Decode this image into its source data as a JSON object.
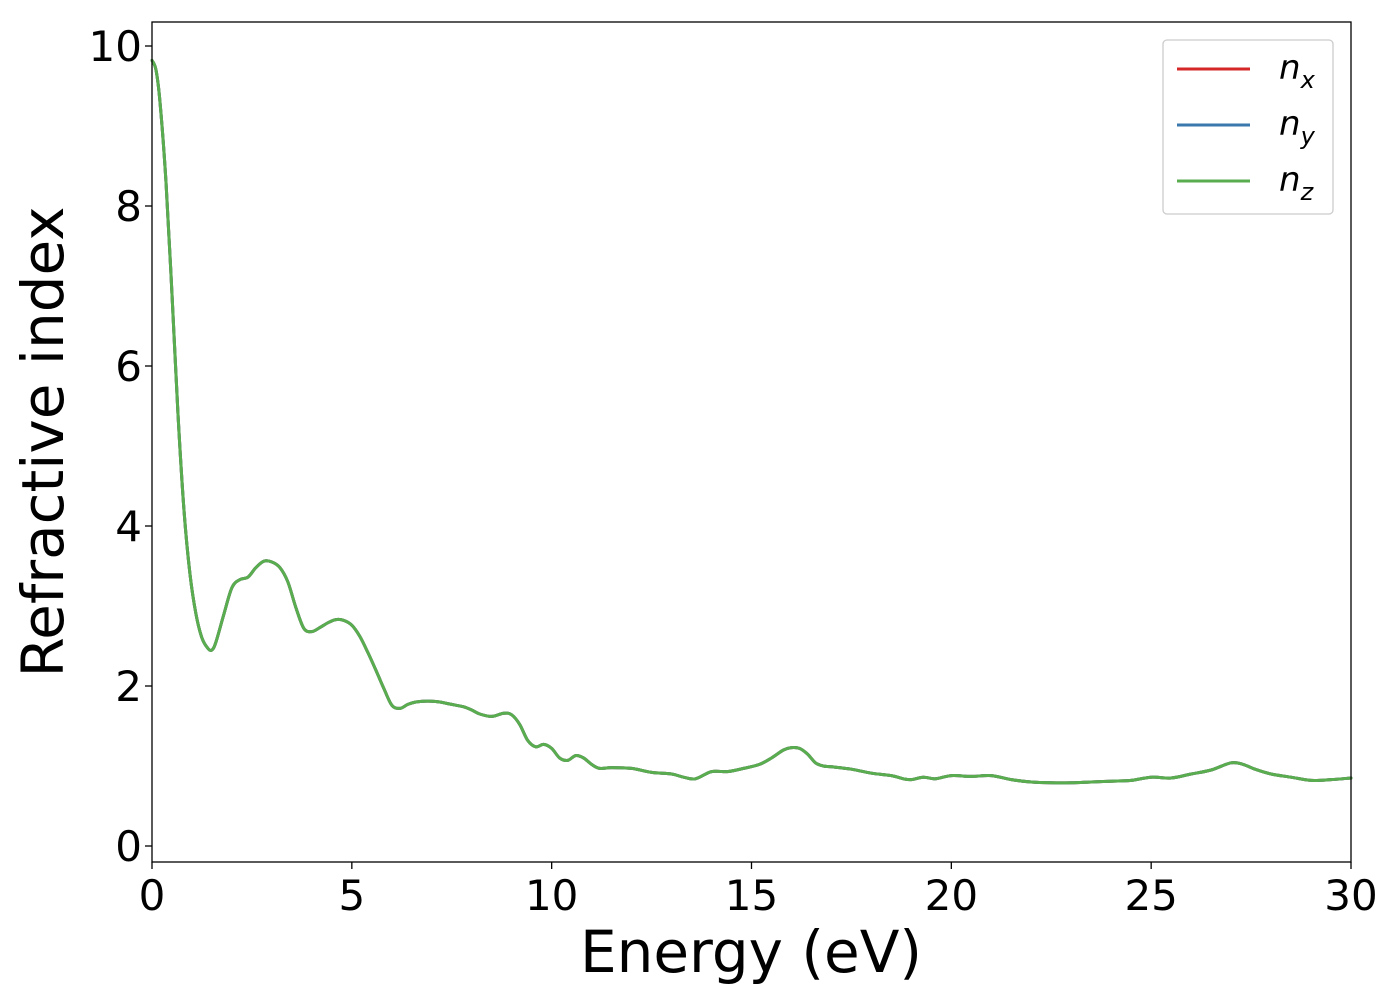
{
  "chart_data": {
    "type": "line",
    "xlabel": "Energy (eV)",
    "ylabel": "Refractive index",
    "xlim": [
      0,
      30
    ],
    "ylim": [
      -0.2,
      10.3
    ],
    "xticks": [
      0,
      5,
      10,
      15,
      20,
      25,
      30
    ],
    "xtick_labels": [
      "0",
      "5",
      "10",
      "15",
      "20",
      "25",
      "30"
    ],
    "yticks": [
      0,
      2,
      4,
      6,
      8,
      10
    ],
    "ytick_labels": [
      "0",
      "2",
      "4",
      "6",
      "8",
      "10"
    ],
    "grid": false,
    "legend_position": "top-right",
    "series": [
      {
        "name": "n_x",
        "label_base": "n",
        "label_sub": "x",
        "color": "#d62728"
      },
      {
        "name": "n_y",
        "label_base": "n",
        "label_sub": "y",
        "color": "#3a78ad"
      },
      {
        "name": "n_z",
        "label_base": "n",
        "label_sub": "z",
        "color": "#5aad4f"
      }
    ],
    "x": [
      0.0,
      0.1,
      0.2,
      0.35,
      0.5,
      0.65,
      0.8,
      0.95,
      1.1,
      1.25,
      1.4,
      1.5,
      1.6,
      1.8,
      2.0,
      2.2,
      2.4,
      2.6,
      2.8,
      3.0,
      3.2,
      3.4,
      3.6,
      3.8,
      4.0,
      4.2,
      4.4,
      4.6,
      4.8,
      5.0,
      5.2,
      5.4,
      5.6,
      5.8,
      6.0,
      6.2,
      6.4,
      6.6,
      6.8,
      7.0,
      7.2,
      7.4,
      7.6,
      7.8,
      8.0,
      8.2,
      8.5,
      8.8,
      9.0,
      9.2,
      9.4,
      9.6,
      9.8,
      10.0,
      10.2,
      10.4,
      10.6,
      10.8,
      11.0,
      11.2,
      11.5,
      12.0,
      12.5,
      13.0,
      13.3,
      13.6,
      14.0,
      14.4,
      14.8,
      15.2,
      15.5,
      15.8,
      16.0,
      16.2,
      16.4,
      16.6,
      16.8,
      17.0,
      17.5,
      18.0,
      18.5,
      18.8,
      19.0,
      19.3,
      19.6,
      20.0,
      20.5,
      21.0,
      21.5,
      22.0,
      22.5,
      23.0,
      23.5,
      24.0,
      24.5,
      25.0,
      25.5,
      26.0,
      26.5,
      27.0,
      27.3,
      27.6,
      28.0,
      28.5,
      29.0,
      29.5,
      30.0
    ],
    "values": [
      9.82,
      9.7,
      9.3,
      8.3,
      6.9,
      5.4,
      4.2,
      3.4,
      2.9,
      2.6,
      2.47,
      2.45,
      2.55,
      2.9,
      3.23,
      3.33,
      3.36,
      3.48,
      3.56,
      3.55,
      3.48,
      3.3,
      2.98,
      2.72,
      2.68,
      2.73,
      2.79,
      2.83,
      2.82,
      2.76,
      2.62,
      2.42,
      2.2,
      1.97,
      1.76,
      1.72,
      1.77,
      1.8,
      1.81,
      1.81,
      1.8,
      1.78,
      1.76,
      1.74,
      1.7,
      1.65,
      1.62,
      1.66,
      1.64,
      1.52,
      1.32,
      1.24,
      1.27,
      1.22,
      1.1,
      1.07,
      1.13,
      1.1,
      1.02,
      0.97,
      0.98,
      0.97,
      0.92,
      0.9,
      0.86,
      0.84,
      0.93,
      0.93,
      0.97,
      1.02,
      1.1,
      1.2,
      1.23,
      1.22,
      1.15,
      1.04,
      1.0,
      0.99,
      0.96,
      0.91,
      0.88,
      0.84,
      0.83,
      0.86,
      0.84,
      0.88,
      0.87,
      0.88,
      0.83,
      0.8,
      0.79,
      0.79,
      0.8,
      0.81,
      0.82,
      0.86,
      0.85,
      0.9,
      0.95,
      1.04,
      1.02,
      0.96,
      0.9,
      0.86,
      0.82,
      0.83,
      0.85
    ]
  }
}
